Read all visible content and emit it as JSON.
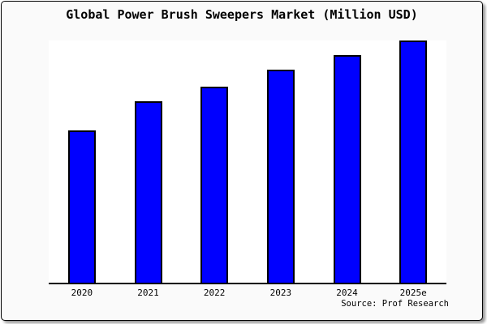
{
  "chart_data": {
    "type": "bar",
    "title": "Global Power Brush Sweepers Market (Million USD)",
    "categories": [
      "2020",
      "2021",
      "2022",
      "2023",
      "2024",
      "2025e"
    ],
    "values": [
      63,
      75,
      81,
      88,
      94,
      100
    ],
    "ylim": [
      0,
      100
    ],
    "value_note": "relative bar heights estimated from pixels; chart shows no y-axis, ticks, gridlines or data labels",
    "xlabel": "",
    "ylabel": "",
    "grid": false,
    "legend": false,
    "bar_color": "#0000ff",
    "bar_border_color": "#000000"
  },
  "footer": {
    "source": "Source: Prof Research"
  },
  "colors": {
    "canvas_bg": "#fafafa",
    "plot_bg": "#ffffff",
    "frame_border": "#000000",
    "text": "#000000"
  }
}
